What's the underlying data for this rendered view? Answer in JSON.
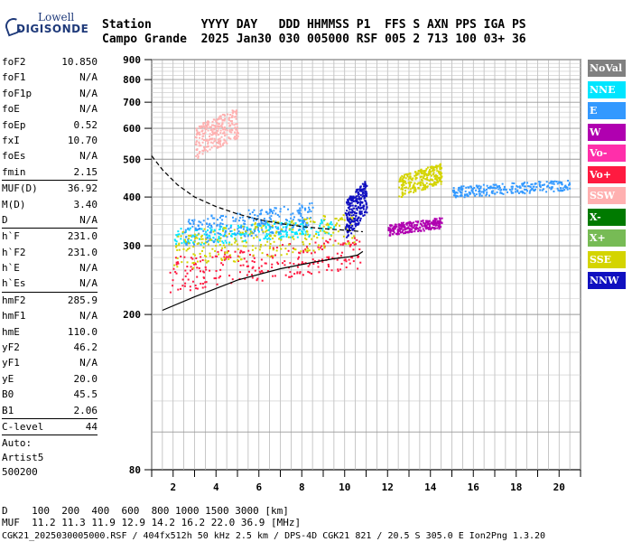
{
  "logo": {
    "line1": "Lowell",
    "line2": "DIGISONDE"
  },
  "header": {
    "row1": "Station       YYYY DAY   DDD HHMMSS P1  FFS S AXN PPS IGA PS",
    "row2": "Campo Grande  2025 Jan30 030 005000 RSF 005 2 713 100 03+ 36"
  },
  "params": [
    {
      "name": "foF2",
      "value": "10.850"
    },
    {
      "name": "foF1",
      "value": "N/A"
    },
    {
      "name": "foF1p",
      "value": "N/A"
    },
    {
      "name": "foE",
      "value": "N/A"
    },
    {
      "name": "foEp",
      "value": "0.52"
    },
    {
      "name": "fxI",
      "value": "10.70"
    },
    {
      "name": "foEs",
      "value": "N/A"
    },
    {
      "name": "fmin",
      "value": "2.15",
      "sep": true
    },
    {
      "name": "MUF(D)",
      "value": "36.92"
    },
    {
      "name": "M(D)",
      "value": "3.40"
    },
    {
      "name": "D",
      "value": "N/A",
      "sep": true
    },
    {
      "name": "h`F",
      "value": "231.0"
    },
    {
      "name": "h`F2",
      "value": "231.0"
    },
    {
      "name": "h`E",
      "value": "N/A"
    },
    {
      "name": "h`Es",
      "value": "N/A",
      "sep": true
    },
    {
      "name": "hmF2",
      "value": "285.9"
    },
    {
      "name": "hmF1",
      "value": "N/A"
    },
    {
      "name": "hmE",
      "value": "110.0"
    },
    {
      "name": "yF2",
      "value": "46.2"
    },
    {
      "name": "yF1",
      "value": "N/A"
    },
    {
      "name": "yE",
      "value": "20.0"
    },
    {
      "name": "B0",
      "value": "45.5"
    },
    {
      "name": "B1",
      "value": "2.06",
      "sep": true
    },
    {
      "name": "C-level",
      "value": "44",
      "sep": true
    }
  ],
  "autoscale": {
    "line1": "Auto:",
    "line2": "Artist5",
    "line3": "500200"
  },
  "legend": [
    {
      "label": "NoVal",
      "color": "#808080"
    },
    {
      "label": "NNE",
      "color": "#00e5ff"
    },
    {
      "label": "E",
      "color": "#3399ff"
    },
    {
      "label": "W",
      "color": "#b000b0"
    },
    {
      "label": "Vo-",
      "color": "#ff2faa"
    },
    {
      "label": "Vo+",
      "color": "#ff1a40"
    },
    {
      "label": "SSW",
      "color": "#ffb0b0"
    },
    {
      "label": "X-",
      "color": "#007a00"
    },
    {
      "label": "X+",
      "color": "#77bb55"
    },
    {
      "label": "SSE",
      "color": "#d4d400"
    },
    {
      "label": "NNW",
      "color": "#1010c0"
    }
  ],
  "footer": {
    "line1": "D    100  200  400  600  800 1000 1500 3000 [km]",
    "line2": "MUF  11.2 11.3 11.9 12.9 14.2 16.2 22.0 36.9 [MHz]",
    "line3": "CGK21_2025030005000.RSF / 404fx512h 50 kHz 2.5 km / DPS-4D CGK21 821 / 20.5 S 305.0 E Ion2Png 1.3.20"
  },
  "chart_data": {
    "type": "scatter",
    "title": "",
    "xlabel": "",
    "ylabel": "",
    "xlim": [
      1,
      21
    ],
    "ylim": [
      80,
      900
    ],
    "yscale": "log",
    "x_ticks": [
      2,
      4,
      6,
      8,
      10,
      12,
      14,
      16,
      18,
      20
    ],
    "y_ticks": [
      80,
      200,
      300,
      400,
      500,
      600,
      700,
      800,
      900
    ],
    "grid": true,
    "legend_position": "right",
    "curves": [
      {
        "name": "",
        "style": "solid",
        "x": [
          1.5,
          3,
          5,
          7,
          8.5,
          9.5,
          10.2,
          10.6,
          10.85
        ],
        "y": [
          205,
          222,
          245,
          262,
          272,
          278,
          281,
          284,
          290
        ]
      },
      {
        "name": "",
        "style": "dashed",
        "x": [
          1,
          1.5,
          2.2,
          3,
          4,
          5,
          6,
          7,
          8,
          9,
          10,
          10.85
        ],
        "y": [
          510,
          470,
          430,
          400,
          378,
          362,
          350,
          342,
          336,
          332,
          329,
          326
        ]
      }
    ],
    "echo_regions": [
      {
        "color": "NNE",
        "x": [
          2,
          9.5
        ],
        "y": [
          300,
          360
        ]
      },
      {
        "color": "E",
        "x": [
          2.5,
          8.5
        ],
        "y": [
          300,
          400
        ]
      },
      {
        "color": "Vo+",
        "x": [
          1.8,
          10.7
        ],
        "y": [
          228,
          330
        ]
      },
      {
        "color": "SSE",
        "x": [
          2,
          10.5
        ],
        "y": [
          260,
          380
        ]
      },
      {
        "color": "SSE",
        "x": [
          12.5,
          14.5
        ],
        "y": [
          400,
          500
        ]
      },
      {
        "color": "SSW",
        "x": [
          3,
          5
        ],
        "y": [
          500,
          700
        ]
      },
      {
        "color": "NNW",
        "x": [
          10,
          11
        ],
        "y": [
          310,
          460
        ]
      },
      {
        "color": "E",
        "x": [
          15,
          20.5
        ],
        "y": [
          400,
          450
        ]
      },
      {
        "color": "W",
        "x": [
          12,
          14.5
        ],
        "y": [
          320,
          360
        ]
      }
    ]
  }
}
